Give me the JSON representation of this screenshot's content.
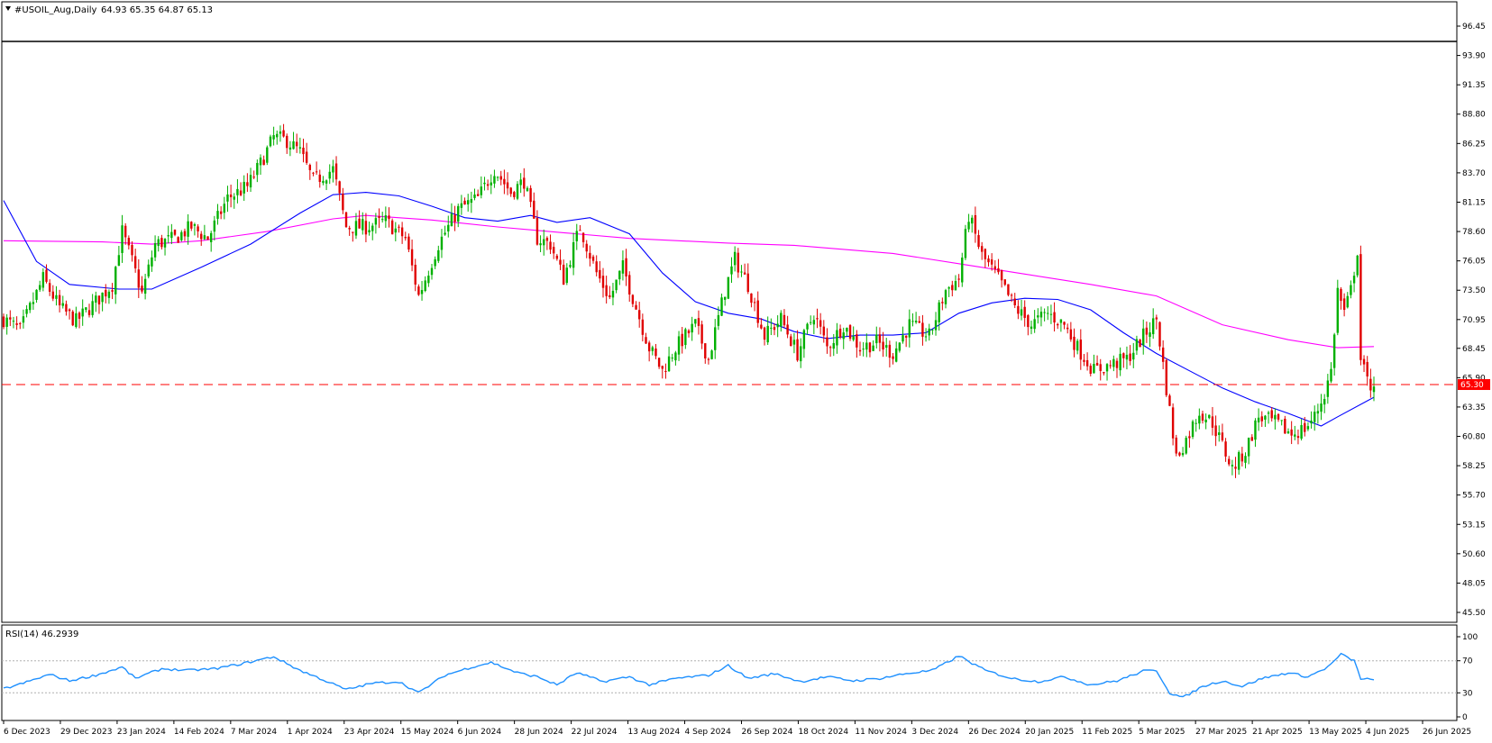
{
  "chart_data": [
    {
      "type": "candlestick",
      "symbol_label": "#USOIL_Aug,Daily",
      "ohlc_label": "64.93 65.35 64.87 65.13",
      "header_icon": "triangle-down-icon",
      "y_ticks": [
        "96.45",
        "93.90",
        "91.35",
        "88.80",
        "86.25",
        "83.70",
        "81.15",
        "78.60",
        "76.05",
        "73.50",
        "70.95",
        "68.45",
        "65.90",
        "63.35",
        "60.80",
        "58.25",
        "55.70",
        "53.15",
        "50.60",
        "48.05",
        "45.50"
      ],
      "ylim": [
        45.5,
        96.45
      ],
      "current_price_label": "65.30",
      "current_price": 65.3,
      "x_labels": [
        "6 Dec 2023",
        "29 Dec 2023",
        "23 Jan 2024",
        "14 Feb 2024",
        "7 Mar 2024",
        "1 Apr 2024",
        "23 Apr 2024",
        "15 May 2024",
        "6 Jun 2024",
        "28 Jun 2024",
        "22 Jul 2024",
        "13 Aug 2024",
        "4 Sep 2024",
        "26 Sep 2024",
        "18 Oct 2024",
        "11 Nov 2024",
        "3 Dec 2024",
        "26 Dec 2024",
        "20 Jan 2025",
        "11 Feb 2025",
        "5 Mar 2025",
        "27 Mar 2025",
        "21 Apr 2025",
        "13 May 2025",
        "4 Jun 2025",
        "26 Jun 2025"
      ],
      "close_path": [
        {
          "x": 0,
          "close": 71.0
        },
        {
          "x": 5,
          "close": 70.0
        },
        {
          "x": 12,
          "close": 74.5
        },
        {
          "x": 17,
          "close": 72.0
        },
        {
          "x": 22,
          "close": 70.8
        },
        {
          "x": 28,
          "close": 72.5
        },
        {
          "x": 33,
          "close": 74.0
        },
        {
          "x": 36,
          "close": 78.6
        },
        {
          "x": 39,
          "close": 76.0
        },
        {
          "x": 42,
          "close": 73.2
        },
        {
          "x": 46,
          "close": 77.5
        },
        {
          "x": 52,
          "close": 78.0
        },
        {
          "x": 57,
          "close": 79.0
        },
        {
          "x": 62,
          "close": 78.0
        },
        {
          "x": 68,
          "close": 81.5
        },
        {
          "x": 74,
          "close": 82.5
        },
        {
          "x": 78,
          "close": 84.5
        },
        {
          "x": 82,
          "close": 86.8
        },
        {
          "x": 86,
          "close": 86.5
        },
        {
          "x": 90,
          "close": 85.5
        },
        {
          "x": 94,
          "close": 83.0
        },
        {
          "x": 100,
          "close": 84.0
        },
        {
          "x": 104,
          "close": 79.0
        },
        {
          "x": 110,
          "close": 79.0
        },
        {
          "x": 116,
          "close": 79.5
        },
        {
          "x": 122,
          "close": 78.0
        },
        {
          "x": 126,
          "close": 73.0
        },
        {
          "x": 132,
          "close": 77.5
        },
        {
          "x": 138,
          "close": 80.5
        },
        {
          "x": 144,
          "close": 81.5
        },
        {
          "x": 149,
          "close": 84.0
        },
        {
          "x": 154,
          "close": 82.0
        },
        {
          "x": 158,
          "close": 83.0
        },
        {
          "x": 162,
          "close": 78.0
        },
        {
          "x": 166,
          "close": 77.5
        },
        {
          "x": 170,
          "close": 74.5
        },
        {
          "x": 175,
          "close": 79.0
        },
        {
          "x": 180,
          "close": 75.0
        },
        {
          "x": 184,
          "close": 72.8
        },
        {
          "x": 188,
          "close": 75.5
        },
        {
          "x": 192,
          "close": 72.0
        },
        {
          "x": 196,
          "close": 68.5
        },
        {
          "x": 200,
          "close": 66.5
        },
        {
          "x": 204,
          "close": 68.5
        },
        {
          "x": 210,
          "close": 70.5
        },
        {
          "x": 214,
          "close": 67.5
        },
        {
          "x": 219,
          "close": 73.5
        },
        {
          "x": 222,
          "close": 76.2
        },
        {
          "x": 226,
          "close": 74.0
        },
        {
          "x": 231,
          "close": 69.5
        },
        {
          "x": 236,
          "close": 71.0
        },
        {
          "x": 241,
          "close": 68.0
        },
        {
          "x": 246,
          "close": 71.5
        },
        {
          "x": 250,
          "close": 68.5
        },
        {
          "x": 255,
          "close": 70.5
        },
        {
          "x": 260,
          "close": 68.5
        },
        {
          "x": 265,
          "close": 69.0
        },
        {
          "x": 270,
          "close": 68.0
        },
        {
          "x": 275,
          "close": 70.5
        },
        {
          "x": 281,
          "close": 69.5
        },
        {
          "x": 286,
          "close": 73.5
        },
        {
          "x": 290,
          "close": 74.5
        },
        {
          "x": 293,
          "close": 80.0
        },
        {
          "x": 297,
          "close": 76.5
        },
        {
          "x": 302,
          "close": 74.5
        },
        {
          "x": 307,
          "close": 72.0
        },
        {
          "x": 312,
          "close": 70.5
        },
        {
          "x": 317,
          "close": 71.5
        },
        {
          "x": 322,
          "close": 70.5
        },
        {
          "x": 326,
          "close": 68.5
        },
        {
          "x": 331,
          "close": 66.5
        },
        {
          "x": 336,
          "close": 67.0
        },
        {
          "x": 341,
          "close": 67.5
        },
        {
          "x": 346,
          "close": 69.5
        },
        {
          "x": 350,
          "close": 71.0
        },
        {
          "x": 353,
          "close": 65.0
        },
        {
          "x": 356,
          "close": 59.0
        },
        {
          "x": 359,
          "close": 60.5
        },
        {
          "x": 363,
          "close": 63.0
        },
        {
          "x": 367,
          "close": 62.0
        },
        {
          "x": 370,
          "close": 60.0
        },
        {
          "x": 373,
          "close": 58.0
        },
        {
          "x": 377,
          "close": 59.5
        },
        {
          "x": 381,
          "close": 62.5
        },
        {
          "x": 386,
          "close": 62.0
        },
        {
          "x": 391,
          "close": 61.0
        },
        {
          "x": 395,
          "close": 61.5
        },
        {
          "x": 398,
          "close": 62.5
        },
        {
          "x": 401,
          "close": 64.5
        },
        {
          "x": 403,
          "close": 66.5
        },
        {
          "x": 405,
          "close": 73.5
        },
        {
          "x": 407,
          "close": 71.5
        },
        {
          "x": 409,
          "close": 73.5
        },
        {
          "x": 411,
          "close": 77.0
        },
        {
          "x": 412,
          "close": 67.5
        },
        {
          "x": 414,
          "close": 65.5
        },
        {
          "x": 416,
          "close": 65.13
        }
      ],
      "ma_fast_path": [
        {
          "x": 0,
          "value": 81.3
        },
        {
          "x": 10,
          "value": 76.0
        },
        {
          "x": 20,
          "value": 74.0
        },
        {
          "x": 35,
          "value": 73.6
        },
        {
          "x": 45,
          "value": 73.6
        },
        {
          "x": 60,
          "value": 75.5
        },
        {
          "x": 75,
          "value": 77.5
        },
        {
          "x": 90,
          "value": 80.2
        },
        {
          "x": 100,
          "value": 81.8
        },
        {
          "x": 110,
          "value": 82.0
        },
        {
          "x": 120,
          "value": 81.7
        },
        {
          "x": 130,
          "value": 80.8
        },
        {
          "x": 140,
          "value": 79.8
        },
        {
          "x": 150,
          "value": 79.5
        },
        {
          "x": 160,
          "value": 80.0
        },
        {
          "x": 168,
          "value": 79.4
        },
        {
          "x": 178,
          "value": 79.8
        },
        {
          "x": 190,
          "value": 78.4
        },
        {
          "x": 200,
          "value": 75.0
        },
        {
          "x": 210,
          "value": 72.5
        },
        {
          "x": 220,
          "value": 71.5
        },
        {
          "x": 230,
          "value": 71.0
        },
        {
          "x": 240,
          "value": 69.9
        },
        {
          "x": 250,
          "value": 69.3
        },
        {
          "x": 260,
          "value": 69.6
        },
        {
          "x": 270,
          "value": 69.6
        },
        {
          "x": 280,
          "value": 69.8
        },
        {
          "x": 290,
          "value": 71.5
        },
        {
          "x": 300,
          "value": 72.4
        },
        {
          "x": 310,
          "value": 72.8
        },
        {
          "x": 320,
          "value": 72.7
        },
        {
          "x": 330,
          "value": 71.8
        },
        {
          "x": 340,
          "value": 69.8
        },
        {
          "x": 350,
          "value": 68.0
        },
        {
          "x": 360,
          "value": 66.5
        },
        {
          "x": 370,
          "value": 65.0
        },
        {
          "x": 380,
          "value": 63.8
        },
        {
          "x": 390,
          "value": 62.8
        },
        {
          "x": 400,
          "value": 61.7
        },
        {
          "x": 405,
          "value": 62.5
        },
        {
          "x": 416,
          "value": 64.2
        }
      ],
      "ma_slow_path": [
        {
          "x": 0,
          "value": 77.8
        },
        {
          "x": 30,
          "value": 77.7
        },
        {
          "x": 45,
          "value": 77.5
        },
        {
          "x": 60,
          "value": 77.8
        },
        {
          "x": 80,
          "value": 78.6
        },
        {
          "x": 100,
          "value": 79.7
        },
        {
          "x": 110,
          "value": 80.0
        },
        {
          "x": 130,
          "value": 79.6
        },
        {
          "x": 150,
          "value": 79.0
        },
        {
          "x": 170,
          "value": 78.5
        },
        {
          "x": 190,
          "value": 78.0
        },
        {
          "x": 220,
          "value": 77.6
        },
        {
          "x": 240,
          "value": 77.4
        },
        {
          "x": 270,
          "value": 76.7
        },
        {
          "x": 290,
          "value": 75.8
        },
        {
          "x": 310,
          "value": 74.9
        },
        {
          "x": 330,
          "value": 74.0
        },
        {
          "x": 350,
          "value": 73.0
        },
        {
          "x": 370,
          "value": 70.5
        },
        {
          "x": 390,
          "value": 69.2
        },
        {
          "x": 405,
          "value": 68.5
        },
        {
          "x": 416,
          "value": 68.6
        }
      ],
      "series": [
        {
          "name": "",
          "color": "#0000ff",
          "role": "moving-average-fast"
        },
        {
          "name": "",
          "color": "#ff00ff",
          "role": "moving-average-slow"
        }
      ],
      "colors": {
        "bull": "#00b000",
        "bear": "#e00000",
        "price_line": "#ff0000",
        "frame": "#000000"
      }
    },
    {
      "type": "line",
      "label": "RSI(14) 46.2939",
      "y_ticks": [
        "100",
        "70",
        "30",
        "0"
      ],
      "ylim": [
        0,
        100
      ],
      "levels": [
        70,
        30
      ],
      "color": "#1e90ff",
      "values": [
        {
          "x": 0,
          "value": 35
        },
        {
          "x": 6,
          "value": 42
        },
        {
          "x": 14,
          "value": 53
        },
        {
          "x": 20,
          "value": 45
        },
        {
          "x": 28,
          "value": 52
        },
        {
          "x": 36,
          "value": 62
        },
        {
          "x": 40,
          "value": 48
        },
        {
          "x": 48,
          "value": 60
        },
        {
          "x": 56,
          "value": 58
        },
        {
          "x": 64,
          "value": 60
        },
        {
          "x": 72,
          "value": 66
        },
        {
          "x": 82,
          "value": 75
        },
        {
          "x": 90,
          "value": 58
        },
        {
          "x": 96,
          "value": 48
        },
        {
          "x": 104,
          "value": 34
        },
        {
          "x": 112,
          "value": 42
        },
        {
          "x": 120,
          "value": 44
        },
        {
          "x": 126,
          "value": 30
        },
        {
          "x": 134,
          "value": 52
        },
        {
          "x": 142,
          "value": 62
        },
        {
          "x": 148,
          "value": 68
        },
        {
          "x": 156,
          "value": 55
        },
        {
          "x": 162,
          "value": 50
        },
        {
          "x": 168,
          "value": 40
        },
        {
          "x": 174,
          "value": 55
        },
        {
          "x": 182,
          "value": 44
        },
        {
          "x": 190,
          "value": 50
        },
        {
          "x": 196,
          "value": 40
        },
        {
          "x": 204,
          "value": 48
        },
        {
          "x": 214,
          "value": 52
        },
        {
          "x": 220,
          "value": 64
        },
        {
          "x": 226,
          "value": 48
        },
        {
          "x": 234,
          "value": 54
        },
        {
          "x": 242,
          "value": 44
        },
        {
          "x": 250,
          "value": 50
        },
        {
          "x": 258,
          "value": 45
        },
        {
          "x": 266,
          "value": 48
        },
        {
          "x": 274,
          "value": 54
        },
        {
          "x": 282,
          "value": 58
        },
        {
          "x": 290,
          "value": 76
        },
        {
          "x": 298,
          "value": 58
        },
        {
          "x": 306,
          "value": 48
        },
        {
          "x": 314,
          "value": 44
        },
        {
          "x": 322,
          "value": 50
        },
        {
          "x": 330,
          "value": 40
        },
        {
          "x": 338,
          "value": 45
        },
        {
          "x": 346,
          "value": 57
        },
        {
          "x": 350,
          "value": 58
        },
        {
          "x": 354,
          "value": 30
        },
        {
          "x": 358,
          "value": 24
        },
        {
          "x": 364,
          "value": 38
        },
        {
          "x": 370,
          "value": 45
        },
        {
          "x": 376,
          "value": 38
        },
        {
          "x": 382,
          "value": 48
        },
        {
          "x": 390,
          "value": 55
        },
        {
          "x": 396,
          "value": 50
        },
        {
          "x": 402,
          "value": 62
        },
        {
          "x": 406,
          "value": 78
        },
        {
          "x": 410,
          "value": 70
        },
        {
          "x": 412,
          "value": 48
        },
        {
          "x": 416,
          "value": 46.3
        }
      ]
    }
  ]
}
